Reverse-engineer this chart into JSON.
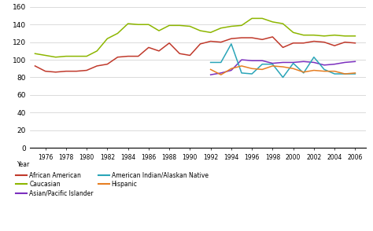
{
  "years": [
    1975,
    1976,
    1977,
    1978,
    1979,
    1980,
    1981,
    1982,
    1983,
    1984,
    1985,
    1986,
    1987,
    1988,
    1989,
    1990,
    1991,
    1992,
    1993,
    1994,
    1995,
    1996,
    1997,
    1998,
    1999,
    2000,
    2001,
    2002,
    2003,
    2004,
    2005,
    2006
  ],
  "african_american": [
    93,
    87,
    86,
    87,
    87,
    88,
    93,
    95,
    103,
    104,
    104,
    114,
    110,
    119,
    107,
    105,
    118,
    121,
    120,
    124,
    125,
    125,
    123,
    126,
    114,
    119,
    119,
    121,
    120,
    116,
    120,
    119
  ],
  "caucasian": [
    107,
    105,
    103,
    104,
    104,
    104,
    110,
    124,
    130,
    141,
    140,
    140,
    133,
    139,
    139,
    138,
    133,
    131,
    136,
    138,
    139,
    147,
    147,
    143,
    141,
    131,
    128,
    128,
    127,
    128,
    127,
    127
  ],
  "asian_pacific": [
    null,
    null,
    null,
    null,
    null,
    null,
    null,
    null,
    null,
    null,
    null,
    null,
    null,
    null,
    null,
    null,
    null,
    83,
    85,
    88,
    100,
    99,
    99,
    96,
    97,
    97,
    98,
    97,
    94,
    95,
    97,
    98
  ],
  "american_indian": [
    null,
    null,
    null,
    null,
    null,
    null,
    null,
    null,
    null,
    null,
    null,
    null,
    null,
    null,
    null,
    null,
    null,
    97,
    97,
    118,
    85,
    84,
    95,
    95,
    80,
    96,
    85,
    103,
    89,
    84,
    84,
    84
  ],
  "hispanic": [
    null,
    null,
    null,
    null,
    null,
    null,
    null,
    null,
    null,
    null,
    null,
    null,
    null,
    null,
    null,
    null,
    null,
    89,
    83,
    90,
    93,
    90,
    89,
    93,
    92,
    90,
    86,
    88,
    87,
    87,
    84,
    85
  ],
  "colors": {
    "african_american": "#c0392b",
    "caucasian": "#8db600",
    "asian_pacific": "#7b2fbe",
    "american_indian": "#2aa5b8",
    "hispanic": "#e67e22"
  },
  "ylim": [
    0,
    160
  ],
  "yticks": [
    0,
    20,
    40,
    60,
    80,
    100,
    120,
    140,
    160
  ],
  "xtick_years": [
    1976,
    1978,
    1980,
    1982,
    1984,
    1986,
    1988,
    1990,
    1992,
    1994,
    1996,
    1998,
    2000,
    2002,
    2004,
    2006
  ],
  "xtick_labels": [
    "1976",
    "1978",
    "1980",
    "1982",
    "1984",
    "1986",
    "1988",
    "1990",
    "1992",
    "1994",
    "1996",
    "1998",
    "2000",
    "2002",
    "2004",
    "2006"
  ],
  "legend_col1": [
    {
      "label": "African American",
      "color": "#c0392b"
    },
    {
      "label": "Asian/Pacific Islander",
      "color": "#7b2fbe"
    },
    {
      "label": "Hispanic",
      "color": "#e67e22"
    }
  ],
  "legend_col2": [
    {
      "label": "Caucasian",
      "color": "#8db600"
    },
    {
      "label": "American Indian/Alaskan Native",
      "color": "#2aa5b8"
    }
  ],
  "background_color": "#ffffff",
  "grid_color": "#cccccc"
}
